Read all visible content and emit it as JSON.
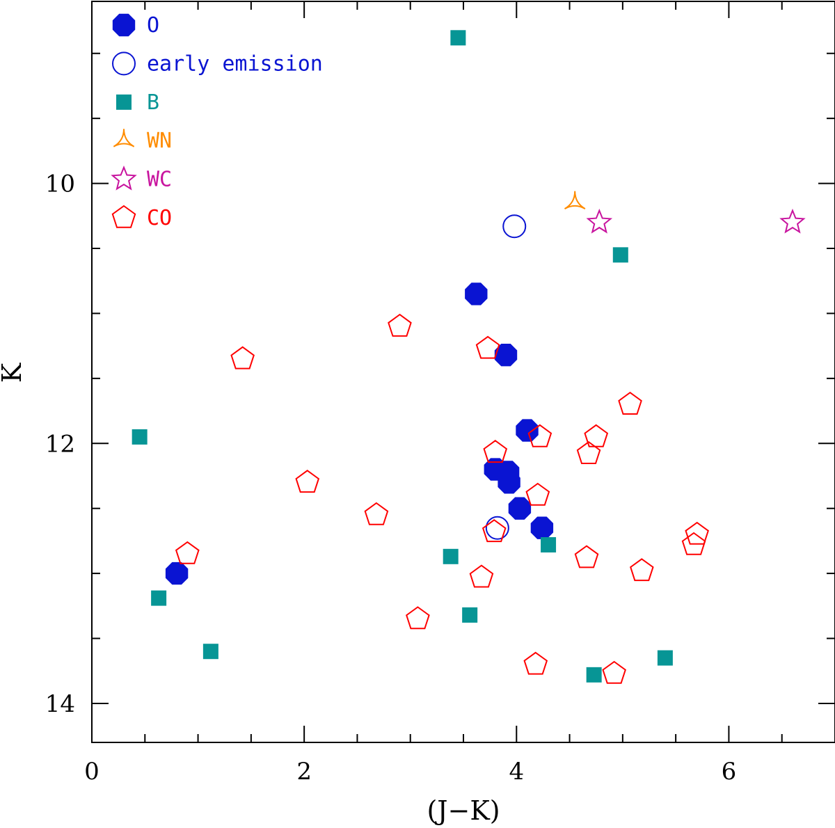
{
  "chart_data": {
    "type": "scatter",
    "title": "",
    "xlabel": "(J−K)",
    "ylabel": "K",
    "xlim": [
      0,
      7
    ],
    "ylim": [
      14.3,
      8.6
    ],
    "y_inverted": true,
    "grid": false,
    "legend_position": "top-left",
    "x_ticks": [
      0,
      2,
      4,
      6
    ],
    "y_ticks": [
      10,
      12,
      14
    ],
    "x_minor_step": 0.5,
    "y_minor_step": 0.5,
    "series": [
      {
        "name": "O",
        "marker": "filled-octagon",
        "color": "#0a14d2",
        "points": [
          {
            "x": 3.62,
            "y": 10.85
          },
          {
            "x": 3.9,
            "y": 11.32
          },
          {
            "x": 4.1,
            "y": 11.9
          },
          {
            "x": 3.8,
            "y": 12.2
          },
          {
            "x": 3.92,
            "y": 12.22
          },
          {
            "x": 3.93,
            "y": 12.3
          },
          {
            "x": 4.03,
            "y": 12.5
          },
          {
            "x": 4.24,
            "y": 12.65
          },
          {
            "x": 0.8,
            "y": 13.0
          }
        ]
      },
      {
        "name": "early emission",
        "marker": "open-circle",
        "color": "#0a14d2",
        "points": [
          {
            "x": 3.98,
            "y": 10.33
          },
          {
            "x": 3.82,
            "y": 12.65
          }
        ]
      },
      {
        "name": "B",
        "marker": "filled-square",
        "color": "#079595",
        "points": [
          {
            "x": 3.45,
            "y": 8.88
          },
          {
            "x": 4.98,
            "y": 10.55
          },
          {
            "x": 0.45,
            "y": 11.95
          },
          {
            "x": 4.3,
            "y": 12.78
          },
          {
            "x": 3.38,
            "y": 12.87
          },
          {
            "x": 0.63,
            "y": 13.19
          },
          {
            "x": 3.56,
            "y": 13.32
          },
          {
            "x": 1.12,
            "y": 13.6
          },
          {
            "x": 5.4,
            "y": 13.65
          },
          {
            "x": 4.73,
            "y": 13.78
          }
        ]
      },
      {
        "name": "WN",
        "marker": "open-tripod",
        "color": "#ff8c00",
        "points": [
          {
            "x": 4.55,
            "y": 10.15
          }
        ]
      },
      {
        "name": "WC",
        "marker": "open-star",
        "color": "#c8139e",
        "points": [
          {
            "x": 4.78,
            "y": 10.3
          },
          {
            "x": 6.6,
            "y": 10.3
          }
        ]
      },
      {
        "name": "CO",
        "marker": "open-pentagon",
        "color": "#ff0000",
        "points": [
          {
            "x": 2.9,
            "y": 11.1
          },
          {
            "x": 1.42,
            "y": 11.35
          },
          {
            "x": 3.73,
            "y": 11.27
          },
          {
            "x": 5.07,
            "y": 11.7
          },
          {
            "x": 4.22,
            "y": 11.95
          },
          {
            "x": 4.75,
            "y": 11.95
          },
          {
            "x": 3.8,
            "y": 12.07
          },
          {
            "x": 4.68,
            "y": 12.08
          },
          {
            "x": 2.03,
            "y": 12.3
          },
          {
            "x": 4.2,
            "y": 12.4
          },
          {
            "x": 2.68,
            "y": 12.55
          },
          {
            "x": 3.79,
            "y": 12.68
          },
          {
            "x": 5.7,
            "y": 12.7
          },
          {
            "x": 5.67,
            "y": 12.78
          },
          {
            "x": 0.9,
            "y": 12.85
          },
          {
            "x": 4.66,
            "y": 12.88
          },
          {
            "x": 5.18,
            "y": 12.98
          },
          {
            "x": 3.67,
            "y": 13.03
          },
          {
            "x": 3.07,
            "y": 13.35
          },
          {
            "x": 4.18,
            "y": 13.7
          },
          {
            "x": 4.92,
            "y": 13.77
          }
        ]
      }
    ]
  }
}
